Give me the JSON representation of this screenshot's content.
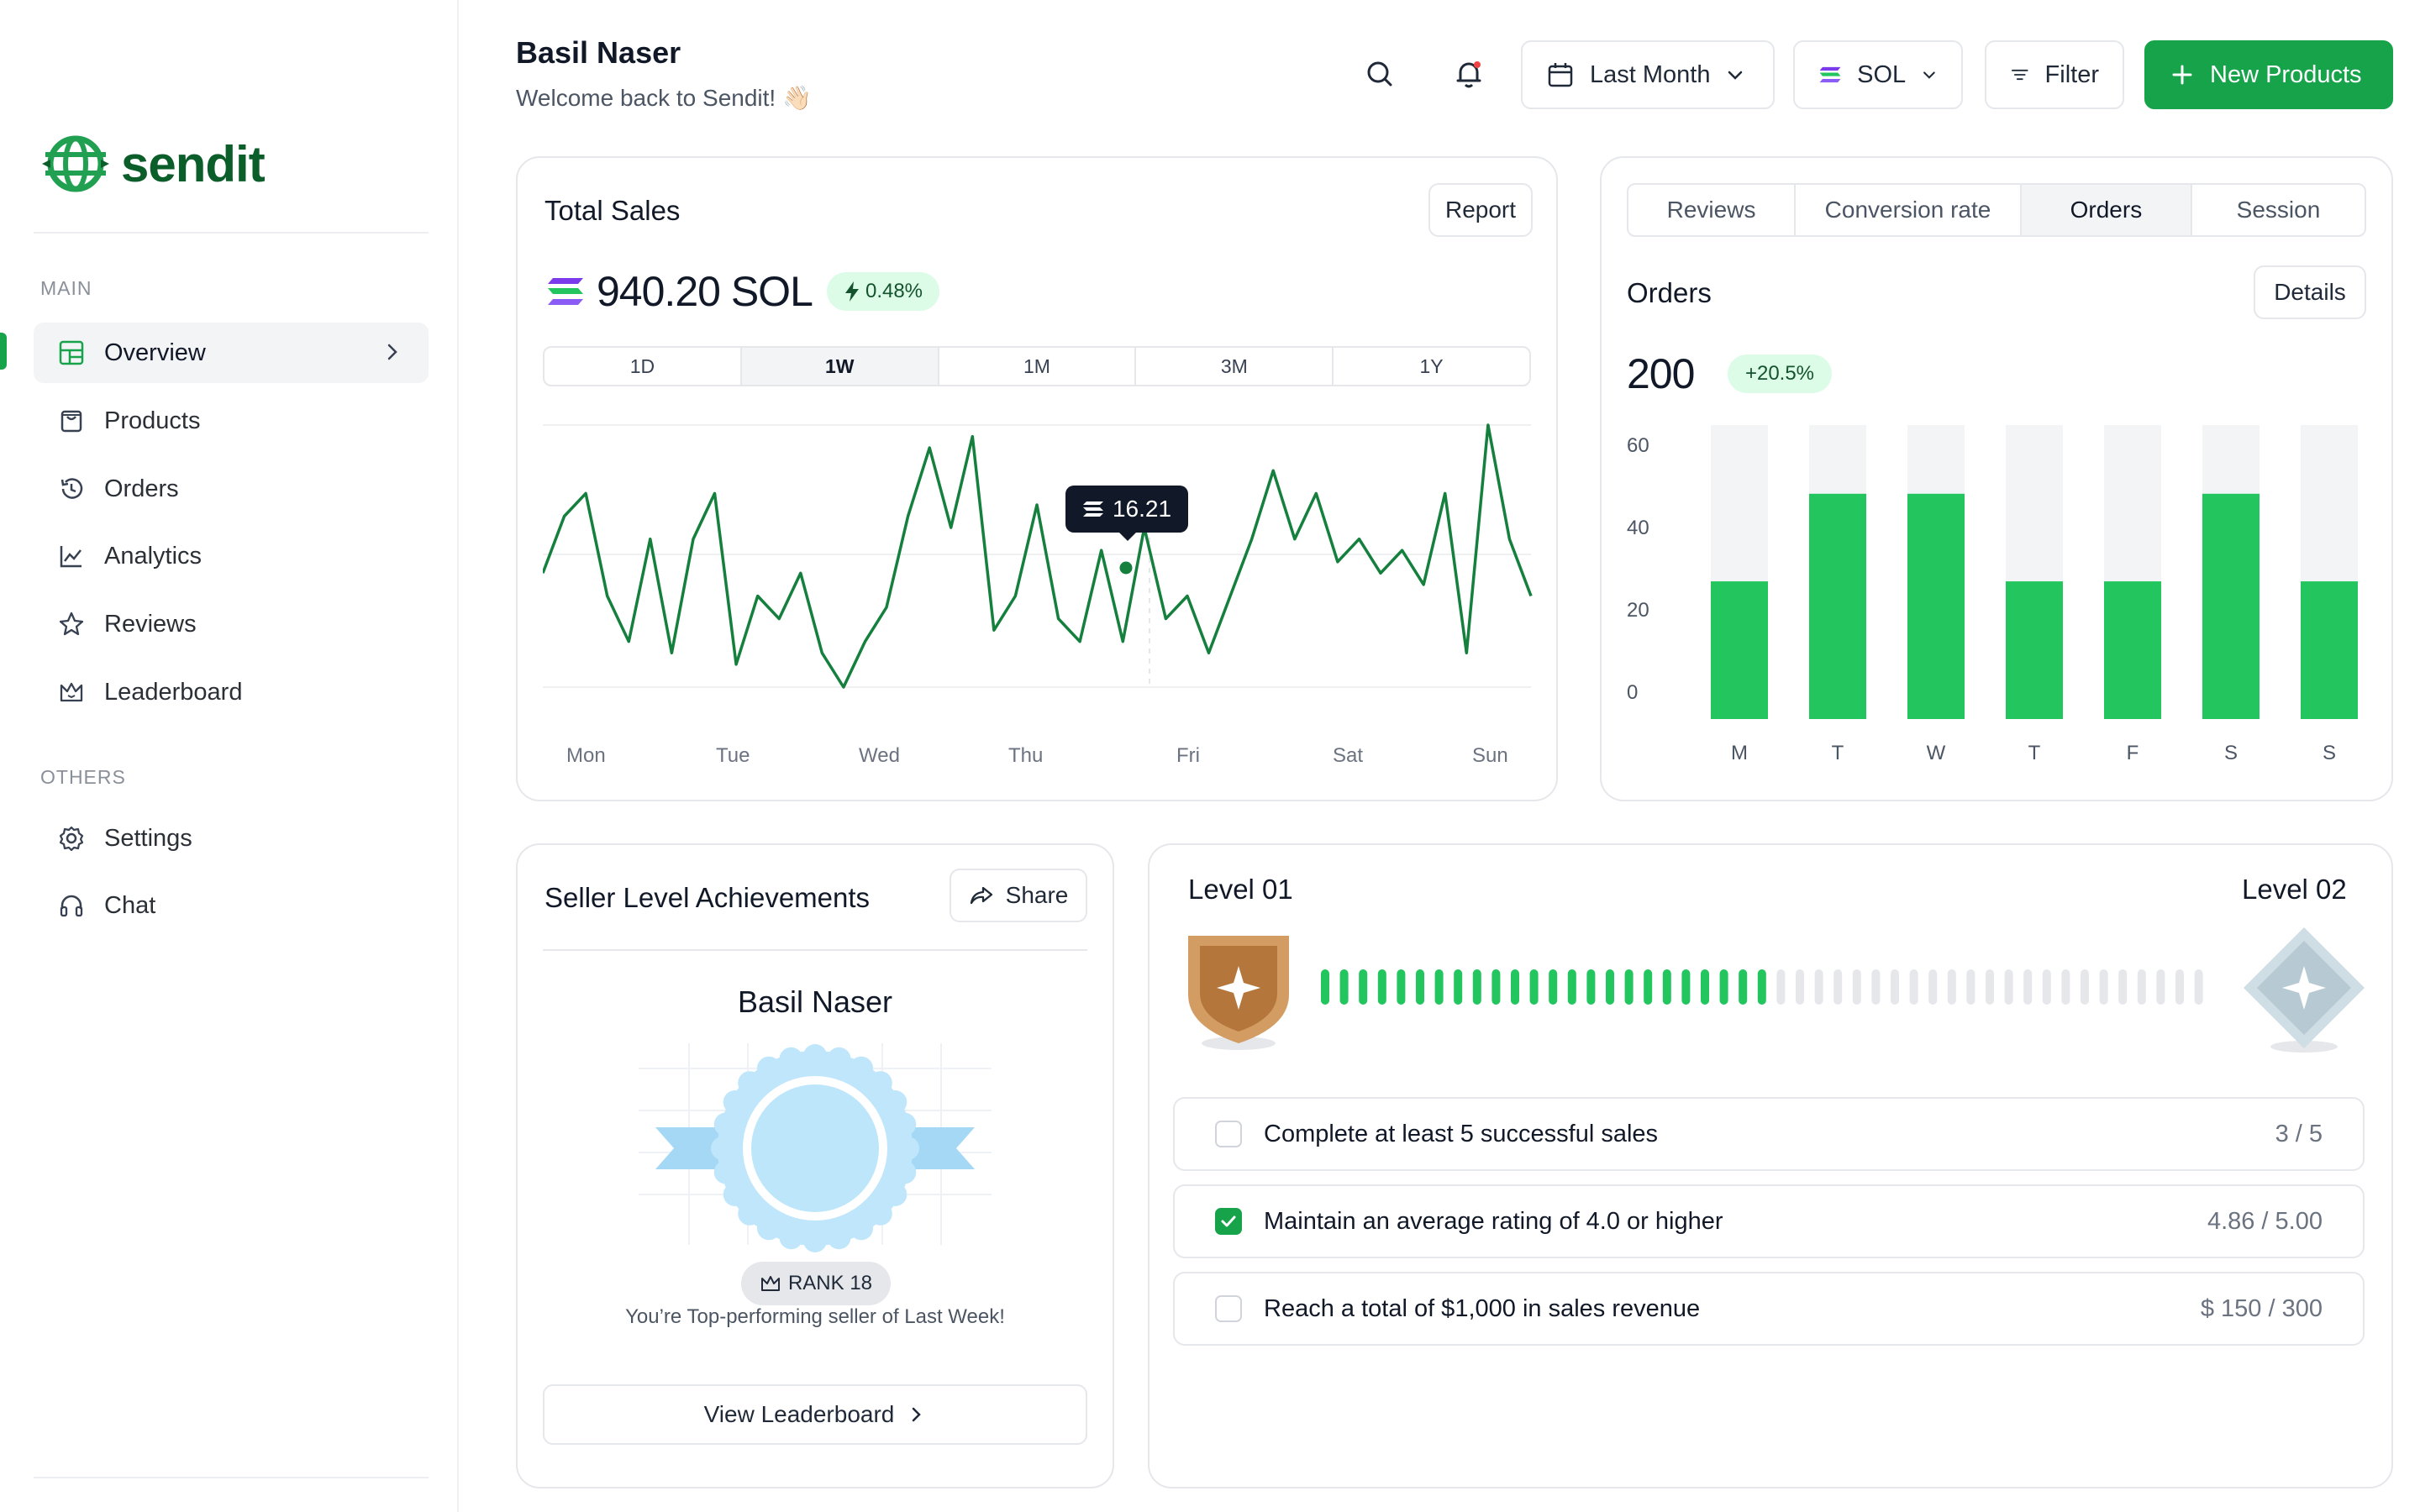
{
  "header": {
    "user_name": "Basil Naser",
    "welcome": "Welcome back to Sendit! 👋🏻",
    "date_filter": "Last Month",
    "currency": "SOL",
    "filter_label": "Filter",
    "new_products_label": "New Products"
  },
  "sidebar": {
    "brand": "sendit",
    "main_heading": "MAIN",
    "others_heading": "OTHERS",
    "items": [
      {
        "label": "Overview",
        "icon": "grid-icon",
        "active": true
      },
      {
        "label": "Products",
        "icon": "bag-icon"
      },
      {
        "label": "Orders",
        "icon": "history-icon"
      },
      {
        "label": "Analytics",
        "icon": "chart-line-icon"
      },
      {
        "label": "Reviews",
        "icon": "star-icon"
      },
      {
        "label": "Leaderboard",
        "icon": "crown-icon"
      }
    ],
    "others": [
      {
        "label": "Settings",
        "icon": "gear-icon"
      },
      {
        "label": "Chat",
        "icon": "headphones-icon"
      }
    ],
    "accent": "#16a34a"
  },
  "total_sales": {
    "title": "Total Sales",
    "report_label": "Report",
    "value": "940.20 SOL",
    "change": "0.48%",
    "ranges": [
      "1D",
      "1W",
      "1M",
      "3M",
      "1Y"
    ],
    "active_range": "1W",
    "tooltip_value": "16.21",
    "x_labels": [
      "Mon",
      "Tue",
      "Wed",
      "Thu",
      "Fri",
      "Sat",
      "Sun"
    ],
    "line_color": "#15803d"
  },
  "orders_card": {
    "tabs": [
      "Reviews",
      "Conversion rate",
      "Orders",
      "Session"
    ],
    "active_tab": "Orders",
    "title": "Orders",
    "details_label": "Details",
    "value": "200",
    "change": "+20.5%"
  },
  "chart_data": {
    "type": "bar",
    "categories": [
      "M",
      "T",
      "W",
      "T",
      "F",
      "S",
      "S"
    ],
    "values": [
      33,
      54,
      54,
      33,
      33,
      54,
      33
    ],
    "ylim": [
      0,
      70
    ],
    "yticks": [
      0,
      20,
      40,
      60
    ],
    "bar_color": "#22c55e",
    "track_color": "#f3f4f6"
  },
  "sales_line": {
    "values": [
      14,
      19,
      21,
      12,
      8,
      17,
      7,
      17,
      21,
      6,
      12,
      10,
      14,
      7,
      4,
      8,
      11,
      19,
      25,
      18,
      26,
      9,
      12,
      20,
      10,
      8,
      16,
      8,
      18,
      10,
      12,
      7,
      12,
      17,
      23,
      17,
      21,
      15,
      17,
      14,
      16,
      13,
      21,
      7,
      27,
      17,
      12
    ]
  },
  "achievements": {
    "title": "Seller Level Achievements",
    "share_label": "Share",
    "seller_name": "Basil Naser",
    "rank": "RANK 18",
    "caption": "You’re Top-performing seller of Last Week!",
    "leaderboard_label": "View Leaderboard"
  },
  "levels": {
    "current": "Level 01",
    "next": "Level 02",
    "progress": 0.52,
    "tasks": [
      {
        "label": "Complete at least 5 successful sales",
        "value": "3 / 5",
        "done": false
      },
      {
        "label": "Maintain an average rating of 4.0 or higher",
        "value": "4.86 / 5.00",
        "done": true
      },
      {
        "label": "Reach a total of $1,000 in sales revenue",
        "value": "$ 150 / 300",
        "done": false
      }
    ]
  }
}
